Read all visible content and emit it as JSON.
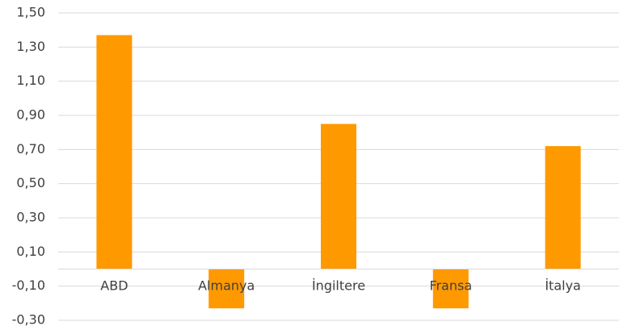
{
  "chart_data": {
    "type": "bar",
    "categories": [
      "ABD",
      "Almanya",
      "İngiltere",
      "Fransa",
      "İtalya"
    ],
    "values": [
      1.37,
      -0.23,
      0.85,
      -0.23,
      0.72
    ],
    "ylim": [
      -0.3,
      1.5
    ],
    "yticks": [
      "1,50",
      "1,30",
      "1,10",
      "0,90",
      "0,70",
      "0,50",
      "0,30",
      "0,10",
      "-0,10",
      "-0,30"
    ],
    "grid": true,
    "legend": "none",
    "bar_color": "#FF9900",
    "grid_color": "#D9D9D9",
    "axis_color": "#D9D9D9",
    "text_color": "#404040"
  }
}
